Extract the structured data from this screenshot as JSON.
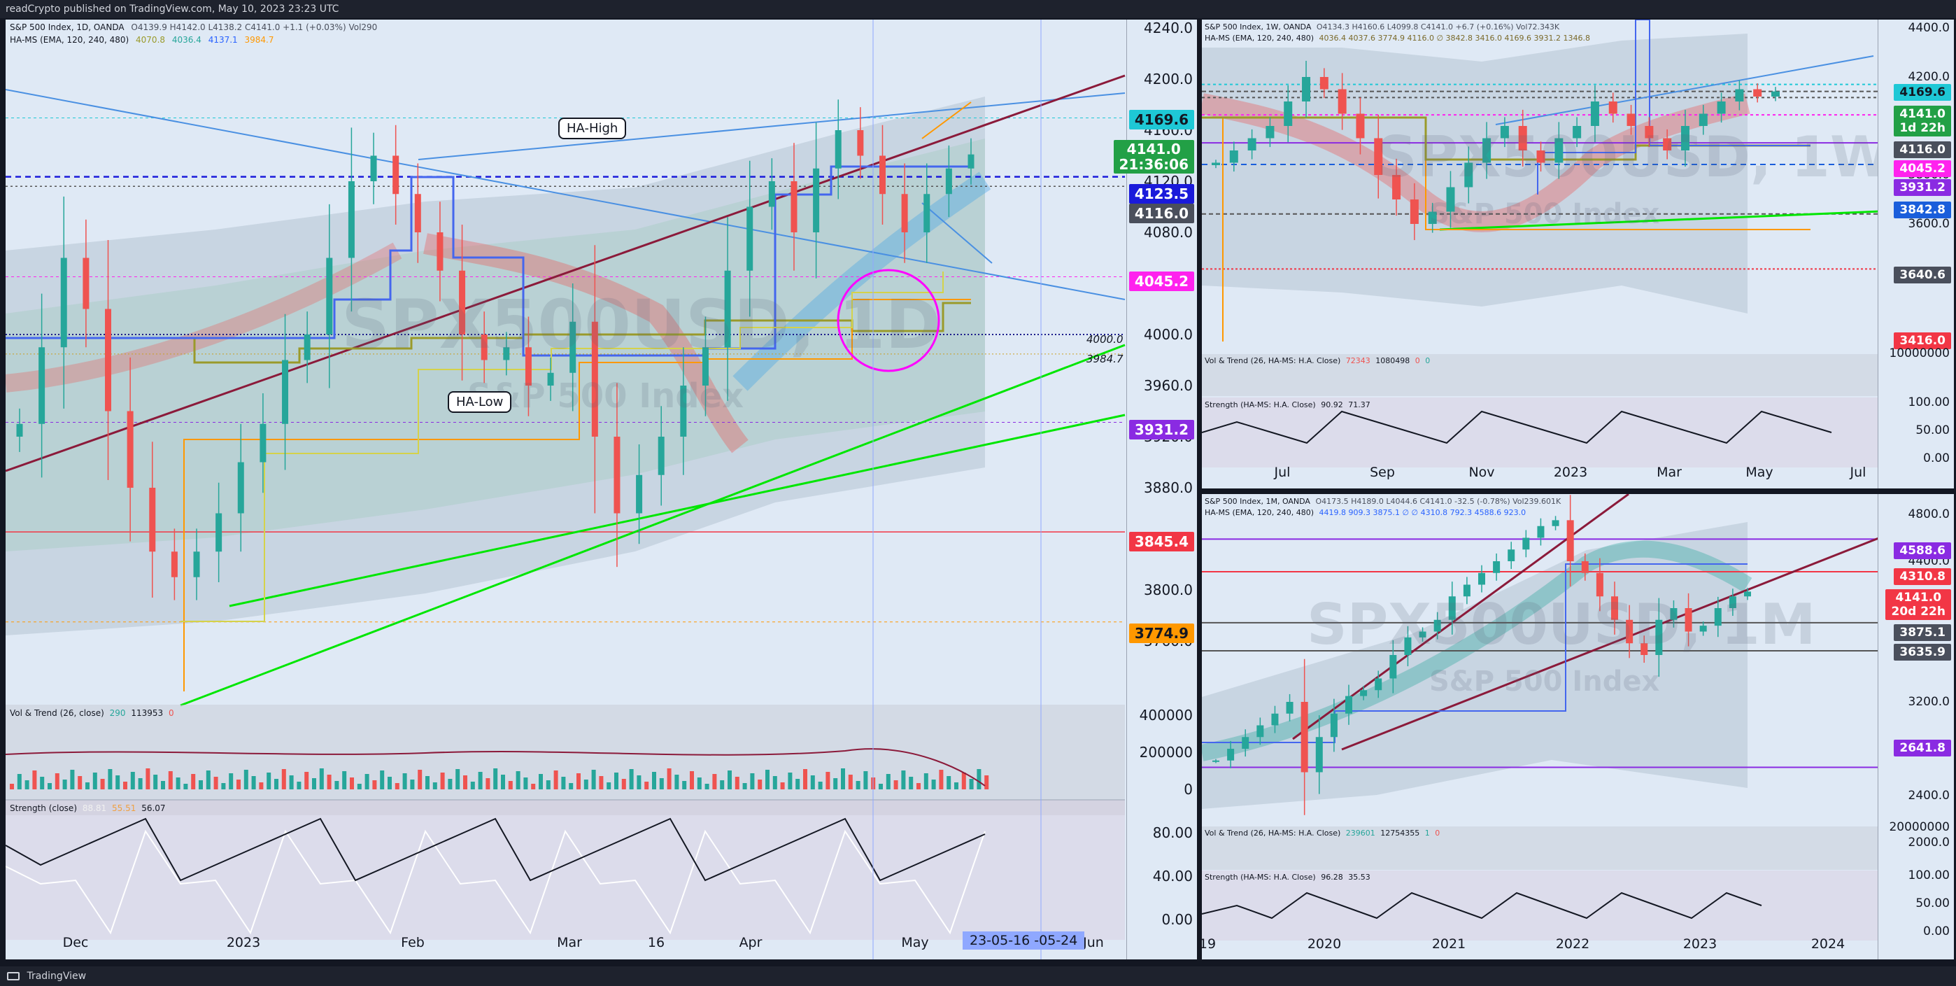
{
  "header": {
    "text": "readCrypto published on TradingView.com, May 10, 2023 23:23 UTC"
  },
  "footer": {
    "logo_text": "TradingView"
  },
  "colors": {
    "bg": "#dfe9f5",
    "bull": "#26a69a",
    "bear": "#ef5350",
    "maroon": "#8b1a3a",
    "blue_line": "#4a90e2",
    "green_line": "#00e600",
    "magenta": "#ff00ff"
  },
  "daily": {
    "legend_line1": {
      "symbol": "S&P 500 Index, 1D, OANDA",
      "ohlc": "O4139.9  H4142.0  L4138.2  C4141.0  +1.1 (+0.03%)  Vol290"
    },
    "legend_line2": {
      "name": "HA-MS (EMA, 120, 240, 480)",
      "v1": "4070.8",
      "v2": "4036.4",
      "v3": "4137.1",
      "v4": "3984.7"
    },
    "watermark": "SPX500USD, 1D",
    "watermark_sub": "S&P 500 Index",
    "callouts": {
      "high": "HA-High",
      "low": "HA-Low"
    },
    "price_ticks": [
      "4240.0",
      "4200.0",
      "4160.0",
      "4120.0",
      "4080.0",
      "4040.0",
      "4000.0",
      "3960.0",
      "3920.0",
      "3880.0",
      "3840.0",
      "3800.0",
      "3760.0"
    ],
    "tags": {
      "t4169": "4169.6",
      "last": "4141.0",
      "countdown": "21:36:06",
      "t4123": "4123.5",
      "t4116": "4116.0",
      "t4045": "4045.2",
      "t3931": "3931.2",
      "t3845": "3845.4",
      "t3774": "3774.9"
    },
    "inline_labels": {
      "l4000": "4000.0",
      "l3984": "3984.7"
    },
    "x_labels": [
      "Dec",
      "2023",
      "Feb",
      "Mar",
      "16",
      "Apr",
      "May",
      "Jun"
    ],
    "crosshair_label": "23-05-16  -05-24",
    "vol_legend": {
      "name": "Vol & Trend (26, close)",
      "v1": "290",
      "v2": "113953",
      "v3": "0"
    },
    "vol_ticks": [
      "400000",
      "200000",
      "0"
    ],
    "strength_legend": {
      "name": "Strength (close)",
      "v1": "88.81",
      "v2": "55.51",
      "v3": "56.07"
    },
    "strength_ticks": [
      "80.00",
      "40.00",
      "0.00"
    ]
  },
  "weekly": {
    "legend_line1": {
      "symbol": "S&P 500 Index, 1W, OANDA",
      "ohlc": "O4134.3  H4160.6  L4099.8  C4141.0  +6.7 (+0.16%)  Vol72.343K"
    },
    "legend_line2": {
      "name": "HA-MS (EMA, 120, 240, 480)",
      "values": "4036.4  4037.6  3774.9  4116.0  ∅  3842.8  3416.0  4169.6  3931.2  1346.8"
    },
    "watermark": "SPX500USD, 1W",
    "watermark_sub": "S&P 500 Index",
    "price_ticks": [
      "4400.0",
      "4200.0",
      "4000.0",
      "3800.0",
      "3600.0",
      "3400.0"
    ],
    "tags": {
      "t4169": "4169.6",
      "last": "4141.0",
      "countdown": "1d 22h",
      "t4116": "4116.0",
      "t4045": "4045.2",
      "t3931": "3931.2",
      "t3842": "3842.8",
      "t3640": "3640.6",
      "t3416": "3416.0"
    },
    "x_labels": [
      "Jul",
      "Sep",
      "Nov",
      "2023",
      "Mar",
      "May",
      "Jul"
    ],
    "vol_legend": {
      "name": "Vol & Trend (26, HA-MS: H.A. Close)",
      "v1": "72343",
      "v2": "1080498",
      "v3": "0",
      "v4": "0"
    },
    "vol_ticks": [
      "10000000"
    ],
    "strength_legend": {
      "name": "Strength (HA-MS: H.A. Close)",
      "v1": "90.92",
      "v2": "71.37"
    },
    "strength_ticks": [
      "100.00",
      "50.00",
      "0.00"
    ]
  },
  "monthly": {
    "legend_line1": {
      "symbol": "S&P 500 Index, 1M, OANDA",
      "ohlc": "O4173.5  H4189.0  L4044.6  C4141.0  -32.5 (-0.78%)  Vol239.601K"
    },
    "legend_line2": {
      "name": "HA-MS (EMA, 120, 240, 480)",
      "values": "4419.8  909.3  3875.1  ∅  ∅  4310.8  792.3  4588.6  923.0"
    },
    "watermark": "SPX500USD, 1M",
    "watermark_sub": "S&P 500 Index",
    "price_ticks": [
      "4800.0",
      "4400.0",
      "4000.0",
      "3600.0",
      "3200.0",
      "2800.0",
      "2400.0",
      "2000.0"
    ],
    "tags": {
      "t4588": "4588.6",
      "t4310": "4310.8",
      "last": "4141.0",
      "countdown": "20d 22h",
      "t3875": "3875.1",
      "t3635": "3635.9",
      "t2641": "2641.8"
    },
    "x_labels": [
      "19",
      "2020",
      "2021",
      "2022",
      "2023",
      "2024"
    ],
    "vol_legend": {
      "name": "Vol & Trend (26, HA-MS: H.A. Close)",
      "v1": "239601",
      "v2": "12754355",
      "v3": "1",
      "v4": "0"
    },
    "vol_ticks": [
      "20000000"
    ],
    "strength_legend": {
      "name": "Strength (HA-MS: H.A. Close)",
      "v1": "96.28",
      "v2": "35.53"
    },
    "strength_ticks": [
      "100.00",
      "50.00",
      "0.00"
    ]
  },
  "chart_data": [
    {
      "type": "candlestick",
      "title": "S&P 500 Index, 1D, OANDA",
      "ylim": [
        3740,
        4250
      ],
      "x_labels": [
        "Dec",
        "2023",
        "Feb",
        "Mar",
        "16",
        "Apr",
        "May",
        "Jun"
      ],
      "approx_close_path": [
        3930,
        3990,
        4060,
        4020,
        3940,
        3880,
        3830,
        3810,
        3830,
        3860,
        3900,
        3930,
        3980,
        4000,
        4060,
        4120,
        4140,
        4110,
        4080,
        4050,
        4000,
        3980,
        3990,
        3960,
        3970,
        4010,
        3920,
        3860,
        3890,
        3920,
        3960,
        3990,
        4050,
        4100,
        4120,
        4080,
        4130,
        4160,
        4140,
        4110,
        4080,
        4110,
        4130,
        4141
      ],
      "levels": [
        4169.6,
        4123.5,
        4116.0,
        4045.2,
        4000.0,
        3984.7,
        3931.2,
        3845.4,
        3774.9
      ]
    },
    {
      "type": "candlestick",
      "title": "S&P 500 Index, 1W, OANDA",
      "ylim": [
        3300,
        4450
      ],
      "x_labels": [
        "Jul",
        "Sep",
        "Nov",
        "2023",
        "Mar",
        "May",
        "Jul"
      ],
      "approx_close_path": [
        3850,
        3900,
        3950,
        4000,
        4100,
        4200,
        4150,
        4050,
        3950,
        3800,
        3700,
        3600,
        3650,
        3750,
        3850,
        3950,
        4000,
        3900,
        3850,
        3950,
        4000,
        4100,
        4050,
        4000,
        3950,
        3900,
        4000,
        4050,
        4100,
        4150,
        4120,
        4141
      ],
      "levels": [
        4169.6,
        4141.0,
        4116.0,
        4045.2,
        3931.2,
        3842.8,
        3640.6,
        3416.0
      ]
    },
    {
      "type": "candlestick",
      "title": "S&P 500 Index, 1M, OANDA",
      "ylim": [
        1900,
        5000
      ],
      "x_labels": [
        "19",
        "2020",
        "2021",
        "2022",
        "2023",
        "2024"
      ],
      "approx_close_path": [
        2700,
        2800,
        2900,
        3000,
        3100,
        3200,
        2600,
        2900,
        3100,
        3250,
        3300,
        3400,
        3600,
        3750,
        3800,
        3900,
        4100,
        4200,
        4300,
        4400,
        4500,
        4600,
        4700,
        4750,
        4400,
        4300,
        4100,
        3900,
        3700,
        3600,
        3900,
        4000,
        3800,
        3850,
        4000,
        4100,
        4141
      ],
      "levels": [
        4588.6,
        4310.8,
        4141.0,
        3875.1,
        3635.9,
        2641.8
      ]
    }
  ]
}
